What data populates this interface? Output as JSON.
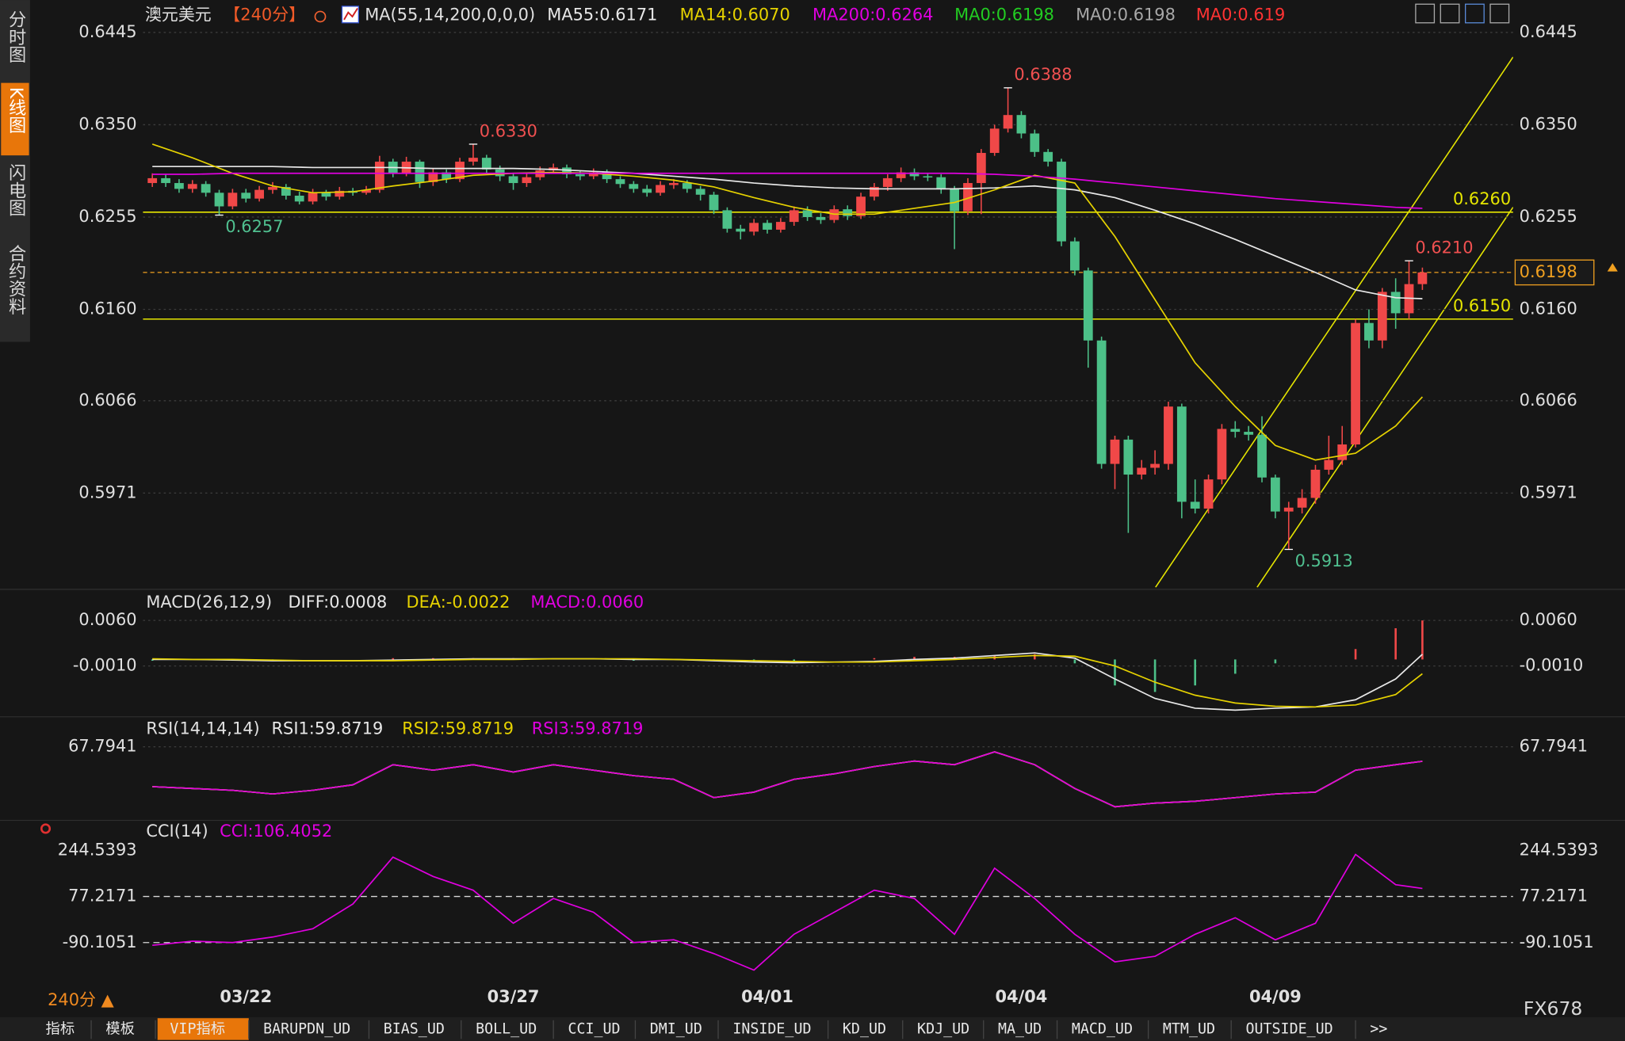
{
  "sidebar": [
    "分时图",
    "K线图",
    "闪电图",
    "合约资料"
  ],
  "header": {
    "symbol": "澳元美元",
    "period": "【240分】",
    "ma0": [
      {
        "label": "MA0:0.6198",
        "color": "#22cc22"
      },
      {
        "label": "MA0:0.6198",
        "color": "#a8a8a8"
      },
      {
        "label": "MA0:0.619",
        "color": "#ff3333"
      }
    ]
  },
  "chart_data": [
    {
      "type": "candlestick",
      "title": "MA(55,14,200,0,0,0)",
      "categories": [
        null,
        null,
        null,
        null,
        null,
        null,
        null,
        "03/22",
        null,
        null,
        null,
        null,
        null,
        null,
        null,
        null,
        null,
        null,
        null,
        null,
        null,
        null,
        null,
        null,
        null,
        null,
        null,
        "03/27",
        null,
        null,
        null,
        null,
        null,
        null,
        null,
        null,
        null,
        null,
        null,
        null,
        null,
        null,
        null,
        null,
        null,
        null,
        "04/01",
        null,
        null,
        null,
        null,
        null,
        null,
        null,
        null,
        null,
        null,
        null,
        null,
        null,
        null,
        null,
        null,
        null,
        null,
        "04/04",
        null,
        null,
        null,
        null,
        null,
        null,
        null,
        null,
        null,
        null,
        null,
        null,
        null,
        null,
        null,
        null,
        null,
        null,
        "04/09",
        null,
        null,
        null,
        null,
        null,
        null,
        null,
        null,
        null,
        null,
        null
      ],
      "open": [
        0.629,
        0.6295,
        0.629,
        0.6284,
        0.6289,
        0.628,
        0.6266,
        0.628,
        0.6274,
        0.6283,
        0.6286,
        0.6277,
        0.6271,
        0.628,
        0.6276,
        0.6282,
        0.628,
        0.6283,
        0.6312,
        0.63,
        0.6312,
        0.6291,
        0.6301,
        0.6294,
        0.6312,
        0.6316,
        0.6304,
        0.6297,
        0.629,
        0.6296,
        0.6303,
        0.6306,
        0.6299,
        0.6297,
        0.6301,
        0.6294,
        0.6289,
        0.6284,
        0.628,
        0.6288,
        0.629,
        0.6284,
        0.6278,
        0.6262,
        0.6243,
        0.624,
        0.6249,
        0.6242,
        0.625,
        0.6262,
        0.6255,
        0.6252,
        0.6263,
        0.6256,
        0.6276,
        0.6286,
        0.6295,
        0.6301,
        0.6297,
        0.6296,
        0.6284,
        0.6261,
        0.629,
        0.6321,
        0.6346,
        0.636,
        0.6341,
        0.6322,
        0.6312,
        0.623,
        0.62,
        0.6128,
        0.6001,
        0.6026,
        0.599,
        0.5997,
        0.6001,
        0.606,
        0.5962,
        0.5955,
        0.5985,
        0.6037,
        0.6034,
        0.6031,
        0.5987,
        0.5952,
        0.5956,
        0.5966,
        0.5995,
        0.6005,
        0.6021,
        0.6146,
        0.6128,
        0.6178,
        0.6156,
        0.6186
      ],
      "high": [
        0.63,
        0.6299,
        0.6294,
        0.6293,
        0.6292,
        0.6283,
        0.6284,
        0.6284,
        0.6287,
        0.6291,
        0.6289,
        0.6281,
        0.6284,
        0.6283,
        0.6286,
        0.6285,
        0.6287,
        0.6318,
        0.6315,
        0.6317,
        0.6314,
        0.6305,
        0.6304,
        0.6316,
        0.633,
        0.6319,
        0.6308,
        0.63,
        0.63,
        0.6307,
        0.631,
        0.6309,
        0.6303,
        0.6305,
        0.6304,
        0.6297,
        0.6292,
        0.6288,
        0.6292,
        0.6294,
        0.6293,
        0.6287,
        0.6281,
        0.6265,
        0.6247,
        0.6253,
        0.6252,
        0.6254,
        0.6266,
        0.6266,
        0.6259,
        0.6267,
        0.6267,
        0.628,
        0.629,
        0.6299,
        0.6306,
        0.6305,
        0.63,
        0.6299,
        0.6287,
        0.6295,
        0.6325,
        0.635,
        0.6388,
        0.6364,
        0.6345,
        0.6325,
        0.6315,
        0.6234,
        0.6203,
        0.6132,
        0.603,
        0.603,
        0.6005,
        0.6015,
        0.6065,
        0.6063,
        0.5985,
        0.599,
        0.6042,
        0.6045,
        0.604,
        0.605,
        0.599,
        0.5962,
        0.5975,
        0.6,
        0.603,
        0.604,
        0.615,
        0.616,
        0.6182,
        0.6192,
        0.621,
        0.6203
      ],
      "low": [
        0.6286,
        0.6286,
        0.628,
        0.628,
        0.6276,
        0.6257,
        0.6263,
        0.627,
        0.6271,
        0.6279,
        0.6273,
        0.6268,
        0.6268,
        0.6272,
        0.6273,
        0.6277,
        0.6278,
        0.628,
        0.6296,
        0.6297,
        0.6285,
        0.6287,
        0.629,
        0.6291,
        0.6308,
        0.63,
        0.6292,
        0.6283,
        0.6286,
        0.6293,
        0.63,
        0.6295,
        0.6293,
        0.6294,
        0.629,
        0.6285,
        0.628,
        0.6276,
        0.6277,
        0.6284,
        0.628,
        0.6272,
        0.6258,
        0.6239,
        0.6232,
        0.6236,
        0.6238,
        0.6239,
        0.6246,
        0.6251,
        0.6248,
        0.6249,
        0.6252,
        0.6253,
        0.6272,
        0.6282,
        0.6291,
        0.6293,
        0.6292,
        0.6279,
        0.6222,
        0.6257,
        0.6258,
        0.6318,
        0.6342,
        0.6336,
        0.6317,
        0.6307,
        0.6225,
        0.6195,
        0.61,
        0.5996,
        0.5975,
        0.593,
        0.5985,
        0.599,
        0.5995,
        0.5945,
        0.595,
        0.595,
        0.598,
        0.6028,
        0.6025,
        0.5982,
        0.5945,
        0.5913,
        0.595,
        0.596,
        0.599,
        0.6,
        0.6018,
        0.612,
        0.612,
        0.614,
        0.615,
        0.618
      ],
      "close": [
        0.6295,
        0.629,
        0.6284,
        0.6289,
        0.628,
        0.6266,
        0.628,
        0.6274,
        0.6283,
        0.6286,
        0.6277,
        0.6271,
        0.628,
        0.6276,
        0.6282,
        0.628,
        0.6283,
        0.6312,
        0.63,
        0.6312,
        0.6291,
        0.6301,
        0.6294,
        0.6312,
        0.6316,
        0.6304,
        0.6297,
        0.629,
        0.6296,
        0.6303,
        0.6306,
        0.6299,
        0.6297,
        0.6301,
        0.6294,
        0.6289,
        0.6284,
        0.628,
        0.6288,
        0.629,
        0.6284,
        0.6278,
        0.6262,
        0.6243,
        0.624,
        0.6249,
        0.6242,
        0.625,
        0.6262,
        0.6255,
        0.6252,
        0.6263,
        0.6256,
        0.6276,
        0.6286,
        0.6295,
        0.6301,
        0.6297,
        0.6296,
        0.6284,
        0.6261,
        0.629,
        0.6321,
        0.6346,
        0.636,
        0.6341,
        0.6322,
        0.6312,
        0.623,
        0.62,
        0.6128,
        0.6001,
        0.6026,
        0.599,
        0.5997,
        0.6001,
        0.606,
        0.5962,
        0.5955,
        0.5985,
        0.6037,
        0.6034,
        0.6031,
        0.5987,
        0.5952,
        0.5956,
        0.5966,
        0.5995,
        0.6005,
        0.6021,
        0.6146,
        0.6128,
        0.6178,
        0.6156,
        0.6186,
        0.6198
      ],
      "up_color": "#f04848",
      "down_color": "#4cc088",
      "x": [
        0,
        3,
        6,
        9,
        12,
        15,
        18,
        21,
        24,
        27,
        30,
        33,
        36,
        39,
        42,
        45,
        48,
        51,
        54,
        57,
        60,
        63,
        66,
        69,
        72,
        75,
        78,
        81,
        84,
        87,
        90,
        93,
        95
      ],
      "series": [
        {
          "name": "MA55:0.6171",
          "color": "#e8e8e8",
          "values": [
            0.6307,
            0.6307,
            0.6307,
            0.6307,
            0.6306,
            0.6306,
            0.6306,
            0.6305,
            0.6305,
            0.6305,
            0.6304,
            0.6302,
            0.63,
            0.6297,
            0.6294,
            0.629,
            0.6287,
            0.6285,
            0.6284,
            0.6284,
            0.6284,
            0.6285,
            0.6287,
            0.6283,
            0.6275,
            0.6262,
            0.6248,
            0.6232,
            0.6215,
            0.6198,
            0.618,
            0.6172,
            0.6171
          ]
        },
        {
          "name": "MA14:0.6070",
          "color": "#e6d200",
          "values": [
            0.633,
            0.6316,
            0.63,
            0.6287,
            0.628,
            0.6281,
            0.6287,
            0.6292,
            0.6298,
            0.63,
            0.6301,
            0.63,
            0.6297,
            0.6293,
            0.6286,
            0.6275,
            0.6265,
            0.6258,
            0.6258,
            0.6264,
            0.627,
            0.6283,
            0.6298,
            0.629,
            0.6235,
            0.617,
            0.6105,
            0.606,
            0.602,
            0.6005,
            0.6012,
            0.604,
            0.607
          ]
        },
        {
          "name": "MA200:0.6264",
          "color": "#e000e0",
          "values": [
            0.6299,
            0.6299,
            0.63,
            0.63,
            0.63,
            0.63,
            0.63,
            0.63,
            0.63,
            0.63,
            0.63,
            0.63,
            0.63,
            0.63,
            0.63,
            0.63,
            0.63,
            0.63,
            0.63,
            0.63,
            0.63,
            0.6299,
            0.6297,
            0.6294,
            0.629,
            0.6286,
            0.6282,
            0.6278,
            0.6274,
            0.6271,
            0.6268,
            0.6265,
            0.6264
          ]
        }
      ],
      "ylim": [
        0.5874,
        0.6473
      ],
      "yticks": [
        0.6445,
        {
          "value": 0.635,
          "label": "0.6350"
        },
        0.6255,
        {
          "value": 0.616,
          "label": "0.6160"
        },
        0.6066,
        0.5971
      ],
      "grid": true,
      "grid_style": "dotted",
      "grid_color": "#3c3c3c",
      "hlines": [
        {
          "value": 0.626,
          "label": "0.6260"
        },
        {
          "value": 0.615,
          "label": "0.6150"
        }
      ],
      "hline_color": "#e6e600",
      "extremes": [
        {
          "candle": 5,
          "value": 0.6257,
          "label": "0.6257",
          "kind": "low"
        },
        {
          "candle": 24,
          "value": 0.633,
          "label": "0.6330",
          "kind": "high"
        },
        {
          "candle": 64,
          "value": 0.6388,
          "label": "0.6388",
          "kind": "high"
        },
        {
          "candle": 85,
          "value": 0.5913,
          "label": "0.5913",
          "kind": "low"
        },
        {
          "candle": 94,
          "value": 0.621,
          "label": "0.6210",
          "kind": "high"
        }
      ],
      "last_price": 0.6198,
      "last_price_color": "#f0a020"
    },
    {
      "type": "macd",
      "title": "MACD(26,12,9)",
      "x": [
        0,
        3,
        6,
        9,
        12,
        15,
        18,
        21,
        24,
        27,
        30,
        33,
        36,
        39,
        42,
        45,
        48,
        51,
        54,
        57,
        60,
        63,
        66,
        69,
        72,
        75,
        78,
        81,
        84,
        87,
        90,
        93,
        95
      ],
      "series": [
        {
          "name": "DIFF:0.0008",
          "color": "#e8e8e8",
          "values": [
            0,
            0,
            -0.0001,
            -0.0002,
            -0.0002,
            -0.0002,
            -0.0001,
            0,
            0.0001,
            0.0001,
            0.0001,
            0.0001,
            0,
            0,
            -0.0002,
            -0.0004,
            -0.0005,
            -0.0004,
            -0.0003,
            0,
            0.0002,
            0.0006,
            0.001,
            0.0002,
            -0.003,
            -0.006,
            -0.0075,
            -0.0078,
            -0.0075,
            -0.0073,
            -0.0062,
            -0.003,
            0.0008
          ]
        },
        {
          "name": "DEA:-0.0022",
          "color": "#e6d200",
          "values": [
            0.0001,
            0,
            0,
            -0.0001,
            -0.0002,
            -0.0002,
            -0.0002,
            -0.0001,
            0,
            0,
            0.0001,
            0.0001,
            0.0001,
            0,
            -0.0001,
            -0.0002,
            -0.0003,
            -0.0004,
            -0.0004,
            -0.0002,
            0,
            0.0003,
            0.0006,
            0.0005,
            -0.001,
            -0.0035,
            -0.0055,
            -0.0067,
            -0.0072,
            -0.0073,
            -0.007,
            -0.0054,
            -0.0022
          ]
        }
      ],
      "histogram": {
        "name": "MACD:0.0060",
        "color": "#e000e0",
        "up_color": "#f04848",
        "down_color": "#4cc088",
        "values": [
          -0.0002,
          0,
          -0.0002,
          -0.0002,
          0,
          0,
          0.0002,
          0.0002,
          0.0002,
          0.0002,
          0,
          0,
          -0.0002,
          0,
          -0.0002,
          -0.0004,
          -0.0004,
          0,
          0.0002,
          0.0004,
          0.0004,
          0.0006,
          0.0008,
          -0.0006,
          -0.004,
          -0.005,
          -0.004,
          -0.0022,
          -0.0006,
          0,
          0.0016,
          0.0048,
          0.006
        ]
      },
      "ylim": [
        -0.0085,
        0.0103
      ],
      "yticks": [
        {
          "value": 0.006,
          "label": "0.0060"
        },
        {
          "value": -0.001,
          "label": "-0.0010"
        }
      ],
      "grid": true,
      "grid_style": "dotted",
      "grid_color": "#3c3c3c"
    },
    {
      "type": "line",
      "title": "RSI(14,14,14)",
      "x": [
        0,
        3,
        6,
        9,
        12,
        15,
        18,
        21,
        24,
        27,
        30,
        33,
        36,
        39,
        42,
        45,
        48,
        51,
        54,
        57,
        60,
        63,
        66,
        69,
        72,
        75,
        78,
        81,
        84,
        87,
        90,
        93,
        95
      ],
      "series": [
        {
          "name": "RSI1:59.8719",
          "color": "#e8e8e8",
          "values": [
            46,
            45,
            44,
            42,
            44,
            47,
            58,
            55,
            58,
            54,
            58,
            55,
            52,
            50,
            40,
            43,
            50,
            53,
            57,
            60,
            58,
            65,
            58,
            45,
            35,
            37,
            38,
            40,
            42,
            43,
            55,
            58,
            59.8719
          ]
        },
        {
          "name": "RSI2:59.8719",
          "color": "#e6d200",
          "values": [
            46,
            45,
            44,
            42,
            44,
            47,
            58,
            55,
            58,
            54,
            58,
            55,
            52,
            50,
            40,
            43,
            50,
            53,
            57,
            60,
            58,
            65,
            58,
            45,
            35,
            37,
            38,
            40,
            42,
            43,
            55,
            58,
            59.8719
          ]
        },
        {
          "name": "RSI3:59.8719",
          "color": "#e000e0",
          "values": [
            46,
            45,
            44,
            42,
            44,
            47,
            58,
            55,
            58,
            54,
            58,
            55,
            52,
            50,
            40,
            43,
            50,
            53,
            57,
            60,
            58,
            65,
            58,
            45,
            35,
            37,
            38,
            40,
            42,
            43,
            55,
            58,
            59.8719
          ]
        }
      ],
      "ylim": [
        28.7,
        82.5
      ],
      "yticks": [
        67.7941
      ],
      "grid": true,
      "grid_style": "dotted",
      "grid_color": "#3c3c3c"
    },
    {
      "type": "line",
      "title": "CCI(14)",
      "x": [
        0,
        3,
        6,
        9,
        12,
        15,
        18,
        21,
        24,
        27,
        30,
        33,
        36,
        39,
        42,
        45,
        48,
        51,
        54,
        57,
        60,
        63,
        66,
        69,
        72,
        75,
        78,
        81,
        84,
        87,
        90,
        93,
        95
      ],
      "series": [
        {
          "name": "CCI:106.4052",
          "color": "#e000e0",
          "values": [
            -100,
            -85,
            -90,
            -70,
            -40,
            50,
            220,
            150,
            100,
            -20,
            70,
            20,
            -90,
            -80,
            -130,
            -190,
            -60,
            20,
            100,
            70,
            -60,
            180,
            70,
            -60,
            -160,
            -140,
            -60,
            0,
            -80,
            -20,
            230,
            120,
            106.4052
          ]
        }
      ],
      "ylim": [
        -240.5,
        342.3
      ],
      "yticks": [
        244.5393,
        77.2171,
        -90.1051
      ],
      "grid": true,
      "grid_style": "dashed",
      "grid_color": "#d8d8d8",
      "grid_skip_first": true
    }
  ],
  "footer": {
    "period": "240分 ▲",
    "brand": "FX678",
    "tabs": [
      "指标",
      "模板",
      "VIP指标",
      "BARUPDN_UD",
      "BIAS_UD",
      "BOLL_UD",
      "CCI_UD",
      "DMI_UD",
      "INSIDE_UD",
      "KD_UD",
      "KDJ_UD",
      "MA_UD",
      "MACD_UD",
      "MTM_UD",
      "OUTSIDE_UD",
      ">>"
    ],
    "active_tab": 2
  }
}
